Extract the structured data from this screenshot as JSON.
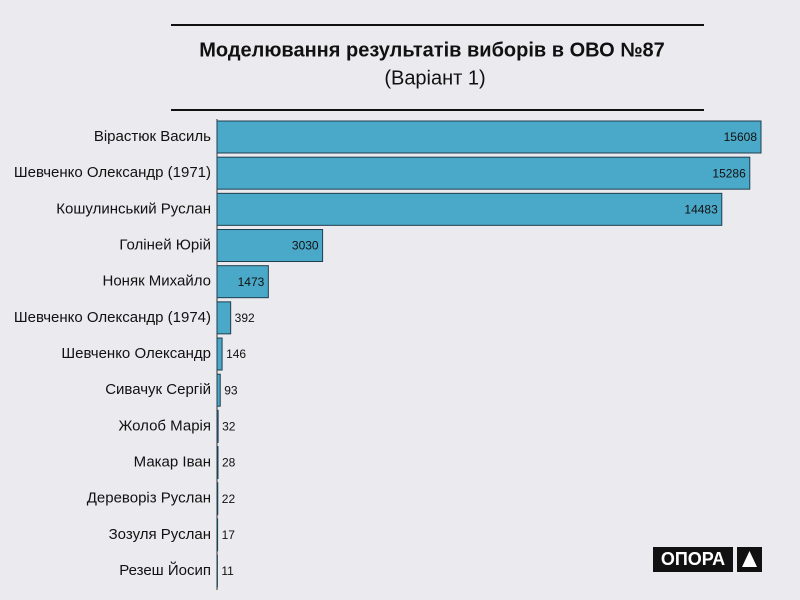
{
  "chart_data": {
    "type": "bar",
    "orientation": "horizontal",
    "title": "Моделювання результатів виборів в ОВО №87",
    "subtitle": "(Варіант 1)",
    "categories": [
      "Вірастюк Василь",
      "Шевченко Олександр (1971)",
      "Кошулинський Руслан",
      "Голіней Юрій",
      "Ноняк Михайло",
      "Шевченко Олександр (1974)",
      "Шевченко Олександр",
      "Сивачук Сергій",
      "Жолоб Марія",
      "Макар Іван",
      "Дереворіз Руслан",
      "Зозуля Руслан",
      "Резеш Йосип"
    ],
    "values": [
      15608,
      15286,
      14483,
      3030,
      1473,
      392,
      146,
      93,
      32,
      28,
      22,
      17,
      11
    ],
    "color": "#4aa8c8"
  },
  "logo": "ОПОРА"
}
